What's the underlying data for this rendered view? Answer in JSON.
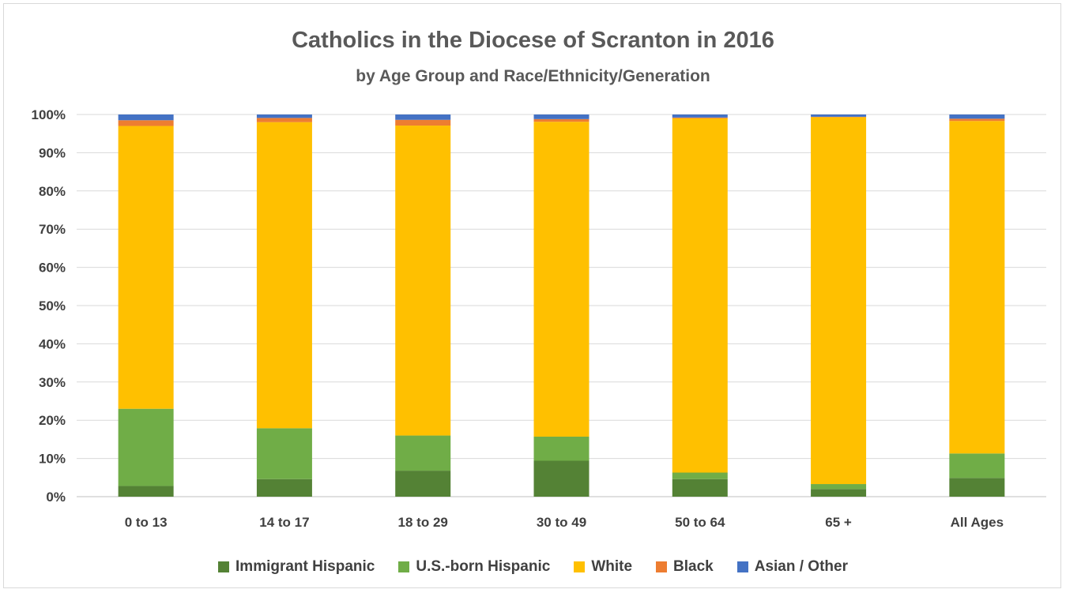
{
  "chart_data": {
    "type": "bar",
    "stacked": true,
    "title": "Catholics in the Diocese of Scranton in 2016",
    "subtitle": "by Age Group and Race/Ethnicity/Generation",
    "categories": [
      "0 to 13",
      "14 to 17",
      "18 to 29",
      "30 to 49",
      "50 to 64",
      "65 +",
      "All Ages"
    ],
    "ylim": [
      0,
      100
    ],
    "yticks": [
      "0%",
      "10%",
      "20%",
      "30%",
      "40%",
      "50%",
      "60%",
      "70%",
      "80%",
      "90%",
      "100%"
    ],
    "grid": true,
    "legend_position": "bottom",
    "series": [
      {
        "name": "Immigrant Hispanic",
        "color": "#548235",
        "values": [
          2.8,
          4.6,
          6.8,
          9.4,
          4.6,
          2.0,
          4.9
        ]
      },
      {
        "name": "U.S.-born Hispanic",
        "color": "#70ad47",
        "values": [
          20.2,
          13.3,
          9.2,
          6.3,
          1.7,
          1.3,
          6.4
        ]
      },
      {
        "name": "White",
        "color": "#ffc000",
        "values": [
          74.0,
          80.1,
          81.1,
          82.4,
          92.7,
          96.0,
          87.0
        ]
      },
      {
        "name": "Black",
        "color": "#ed7d31",
        "values": [
          1.5,
          1.1,
          1.5,
          0.7,
          0.2,
          0.1,
          0.6
        ]
      },
      {
        "name": "Asian / Other",
        "color": "#4472c4",
        "values": [
          1.5,
          0.9,
          1.4,
          1.2,
          0.8,
          0.6,
          1.1
        ]
      }
    ]
  }
}
